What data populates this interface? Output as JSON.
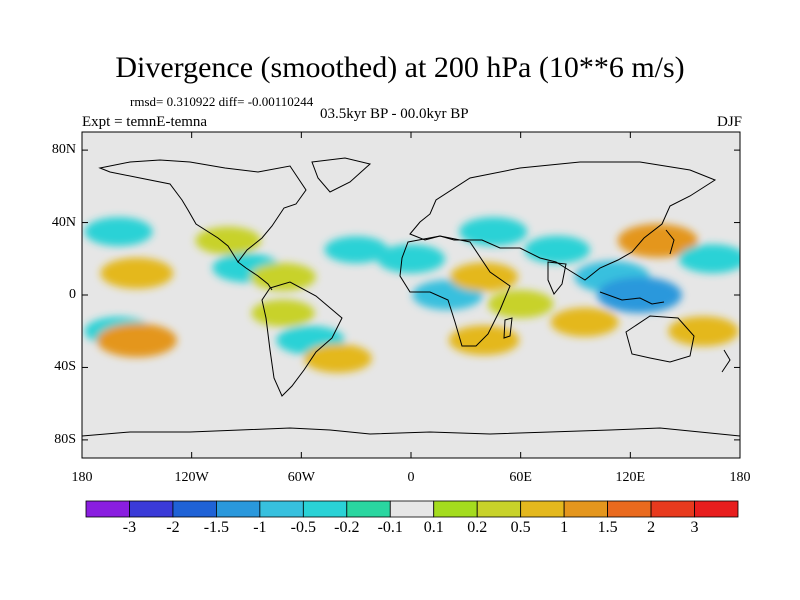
{
  "title": "Divergence (smoothed) at 200 hPa (10**6 m/s)",
  "stats": "rmsd= 0.310922 diff= -0.00110244",
  "experiment": "Expt = temnE-temna",
  "period": "03.5kyr BP - 00.0kyr BP",
  "season": "DJF",
  "lat_ticks": [
    {
      "value": 80,
      "label": "80N"
    },
    {
      "value": 40,
      "label": "40N"
    },
    {
      "value": 0,
      "label": "0"
    },
    {
      "value": -40,
      "label": "40S"
    },
    {
      "value": -80,
      "label": "80S"
    }
  ],
  "lon_ticks": [
    {
      "value": -180,
      "label": "180"
    },
    {
      "value": -120,
      "label": "120W"
    },
    {
      "value": -60,
      "label": "60W"
    },
    {
      "value": 0,
      "label": "0"
    },
    {
      "value": 60,
      "label": "60E"
    },
    {
      "value": 120,
      "label": "120E"
    },
    {
      "value": 180,
      "label": "180"
    }
  ],
  "colorbar": {
    "levels": [
      "-3",
      "-2",
      "-1.5",
      "-1",
      "-0.5",
      "-0.2",
      "-0.1",
      "0.1",
      "0.2",
      "0.5",
      "1",
      "1.5",
      "2",
      "3"
    ],
    "colors": [
      "#8a1ee0",
      "#3a3ad8",
      "#1f62d6",
      "#2a98dc",
      "#37c0de",
      "#2ad2d6",
      "#2ad6a0",
      "#e6e6e6",
      "#a4dc1e",
      "#c8d22a",
      "#e4b81e",
      "#e4961e",
      "#ea6a1e",
      "#e83a1e",
      "#e81e1e"
    ]
  },
  "chart_data": {
    "type": "heatmap",
    "title": "Divergence (smoothed) at 200 hPa (10**6 m/s)",
    "variable": "200 hPa divergence difference (smoothed)",
    "units": "10**6 m/s",
    "xlim": [
      -180,
      180
    ],
    "ylim": [
      -90,
      90
    ],
    "anomaly_regions": [
      {
        "lon": -160,
        "lat": 35,
        "value": -0.5
      },
      {
        "lon": -150,
        "lat": 12,
        "value": 0.7
      },
      {
        "lon": -160,
        "lat": -20,
        "value": -0.5
      },
      {
        "lon": -150,
        "lat": -25,
        "value": 1.0
      },
      {
        "lon": -100,
        "lat": 30,
        "value": 0.4
      },
      {
        "lon": -90,
        "lat": 15,
        "value": -0.5
      },
      {
        "lon": -70,
        "lat": 10,
        "value": 0.4
      },
      {
        "lon": -70,
        "lat": -10,
        "value": 0.3
      },
      {
        "lon": -55,
        "lat": -25,
        "value": -0.5
      },
      {
        "lon": -40,
        "lat": -35,
        "value": 0.5
      },
      {
        "lon": -30,
        "lat": 25,
        "value": -0.3
      },
      {
        "lon": 0,
        "lat": 20,
        "value": -0.5
      },
      {
        "lon": 20,
        "lat": 0,
        "value": -0.6
      },
      {
        "lon": 40,
        "lat": 10,
        "value": 0.5
      },
      {
        "lon": 45,
        "lat": 35,
        "value": -0.5
      },
      {
        "lon": 40,
        "lat": -25,
        "value": 0.6
      },
      {
        "lon": 60,
        "lat": -5,
        "value": 0.4
      },
      {
        "lon": 80,
        "lat": 25,
        "value": -0.4
      },
      {
        "lon": 95,
        "lat": -15,
        "value": 0.5
      },
      {
        "lon": 110,
        "lat": 10,
        "value": -0.8
      },
      {
        "lon": 125,
        "lat": 0,
        "value": -1.2
      },
      {
        "lon": 135,
        "lat": 30,
        "value": 1.0
      },
      {
        "lon": 165,
        "lat": 20,
        "value": -0.5
      },
      {
        "lon": 160,
        "lat": -20,
        "value": 0.6
      }
    ]
  }
}
